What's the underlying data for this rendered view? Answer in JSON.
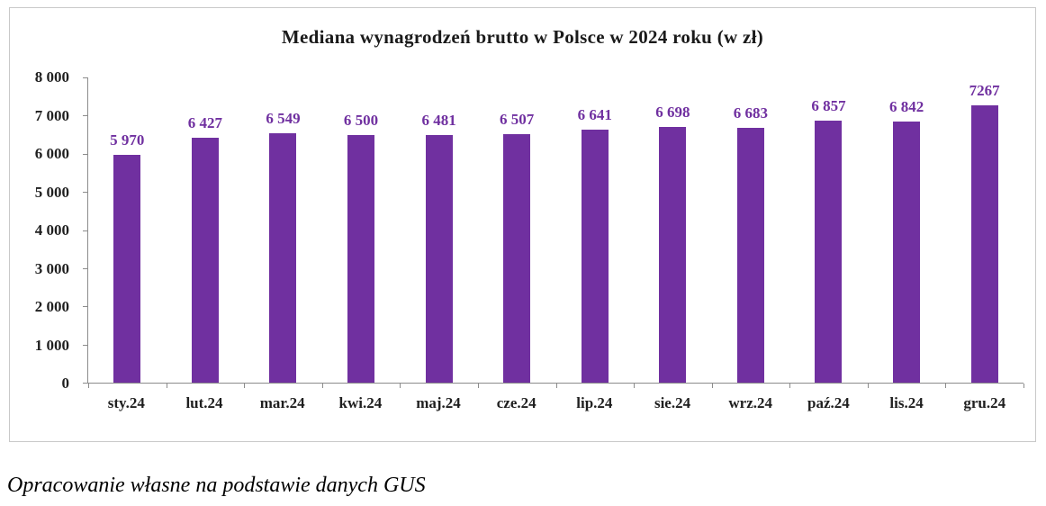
{
  "caption": "Opracowanie własne na podstawie danych GUS",
  "chart_data": {
    "type": "bar",
    "title": "Mediana wynagrodzeń brutto w Polsce w 2024 roku (w zł)",
    "categories": [
      "sty.24",
      "lut.24",
      "mar.24",
      "kwi.24",
      "maj.24",
      "cze.24",
      "lip.24",
      "sie.24",
      "wrz.24",
      "paź.24",
      "lis.24",
      "gru.24"
    ],
    "values": [
      5970,
      6427,
      6549,
      6500,
      6481,
      6507,
      6641,
      6698,
      6683,
      6857,
      6842,
      7267
    ],
    "value_labels": [
      "5 970",
      "6 427",
      "6 549",
      "6 500",
      "6 481",
      "6 507",
      "6 641",
      "6 698",
      "6 683",
      "6 857",
      "6 842",
      "7267"
    ],
    "xlabel": "",
    "ylabel": "",
    "ylim": [
      0,
      8000
    ],
    "y_ticks": [
      0,
      1000,
      2000,
      3000,
      4000,
      5000,
      6000,
      7000,
      8000
    ],
    "y_tick_labels": [
      "0",
      "1 000",
      "2 000",
      "3 000",
      "4 000",
      "5 000",
      "6 000",
      "7 000",
      "8 000"
    ],
    "grid": false,
    "legend": "none",
    "bar_color": "#7030A0",
    "label_color": "#7030A0"
  }
}
